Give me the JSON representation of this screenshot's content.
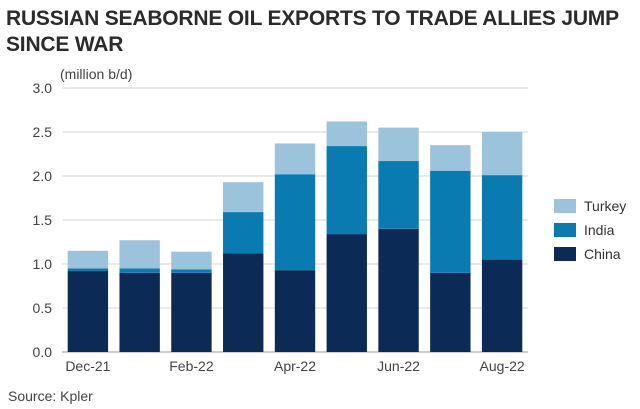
{
  "title": "RUSSIAN SEABORNE OIL EXPORTS TO TRADE ALLIES JUMP SINCE WAR",
  "unit_label": "(million b/d)",
  "source": "Source: Kpler",
  "chart_data": {
    "type": "bar",
    "stacked": true,
    "categories": [
      "Dec-21",
      "Jan-22",
      "Feb-22",
      "Mar-22",
      "Apr-22",
      "May-22",
      "Jun-22",
      "Jul-22",
      "Aug-22"
    ],
    "x_tick_labels": [
      "Dec-21",
      "",
      "Feb-22",
      "",
      "Apr-22",
      "",
      "Jun-22",
      "",
      "Aug-22"
    ],
    "series": [
      {
        "name": "China",
        "color": "#0b2a55",
        "values": [
          0.92,
          0.9,
          0.9,
          1.12,
          0.93,
          1.34,
          1.4,
          0.9,
          1.05
        ]
      },
      {
        "name": "India",
        "color": "#0a7bb0",
        "values": [
          0.03,
          0.05,
          0.04,
          0.47,
          1.09,
          1.0,
          0.77,
          1.16,
          0.96
        ]
      },
      {
        "name": "Turkey",
        "color": "#9cc3dc",
        "values": [
          0.2,
          0.32,
          0.2,
          0.34,
          0.35,
          0.28,
          0.38,
          0.29,
          0.49
        ]
      }
    ],
    "ylim": [
      0,
      3.0
    ],
    "y_ticks": [
      "0.0",
      "0.5",
      "1.0",
      "1.5",
      "2.0",
      "2.5",
      "3.0"
    ],
    "grid": true,
    "legend": [
      "Turkey",
      "India",
      "China"
    ],
    "legend_position": "right"
  }
}
